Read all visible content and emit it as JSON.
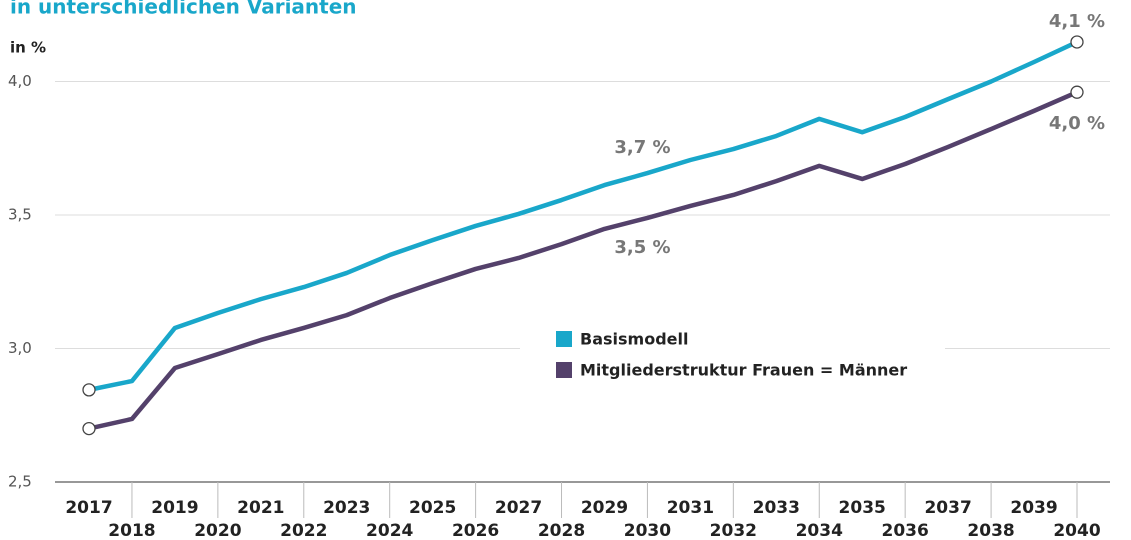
{
  "chart_data": {
    "type": "line",
    "title": "in unterschiedlichen Varianten",
    "y_label": "in %",
    "categories": [
      "2017",
      "2018",
      "2019",
      "2020",
      "2021",
      "2022",
      "2023",
      "2024",
      "2025",
      "2026",
      "2027",
      "2028",
      "2029",
      "2030",
      "2031",
      "2032",
      "2033",
      "2034",
      "2035",
      "2036",
      "2037",
      "2038",
      "2039",
      "2040"
    ],
    "series": [
      {
        "name": "Basismodell",
        "color": "#19a7ca",
        "values": [
          2.845,
          2.878,
          3.077,
          3.133,
          3.185,
          3.23,
          3.283,
          3.35,
          3.406,
          3.459,
          3.504,
          3.556,
          3.612,
          3.657,
          3.706,
          3.747,
          3.796,
          3.86,
          3.81,
          3.867,
          3.934,
          4.0,
          4.073,
          4.148
        ],
        "value_labels": [
          null,
          null,
          null,
          null,
          null,
          null,
          null,
          null,
          null,
          null,
          null,
          null,
          null,
          "3,7 %",
          null,
          null,
          null,
          null,
          null,
          null,
          null,
          null,
          null,
          "4,1 %"
        ]
      },
      {
        "name": "Mitgliederstruktur Frauen = Männer",
        "color": "#54416b",
        "values": [
          2.7,
          2.736,
          2.927,
          2.979,
          3.032,
          3.077,
          3.125,
          3.189,
          3.245,
          3.298,
          3.339,
          3.391,
          3.448,
          3.489,
          3.534,
          3.575,
          3.627,
          3.684,
          3.635,
          3.691,
          3.755,
          3.822,
          3.89,
          3.96
        ],
        "value_labels": [
          null,
          null,
          null,
          null,
          null,
          null,
          null,
          null,
          null,
          null,
          null,
          null,
          null,
          "3,5 %",
          null,
          null,
          null,
          null,
          null,
          null,
          null,
          null,
          null,
          "4,0 %"
        ]
      }
    ],
    "ylim": [
      2.5,
      4.2
    ],
    "yticks": [
      {
        "value": 2.5,
        "label": "2,5"
      },
      {
        "value": 3.0,
        "label": "3,0"
      },
      {
        "value": 3.5,
        "label": "3,5"
      },
      {
        "value": 4.0,
        "label": "4,0"
      }
    ],
    "grid": true
  }
}
